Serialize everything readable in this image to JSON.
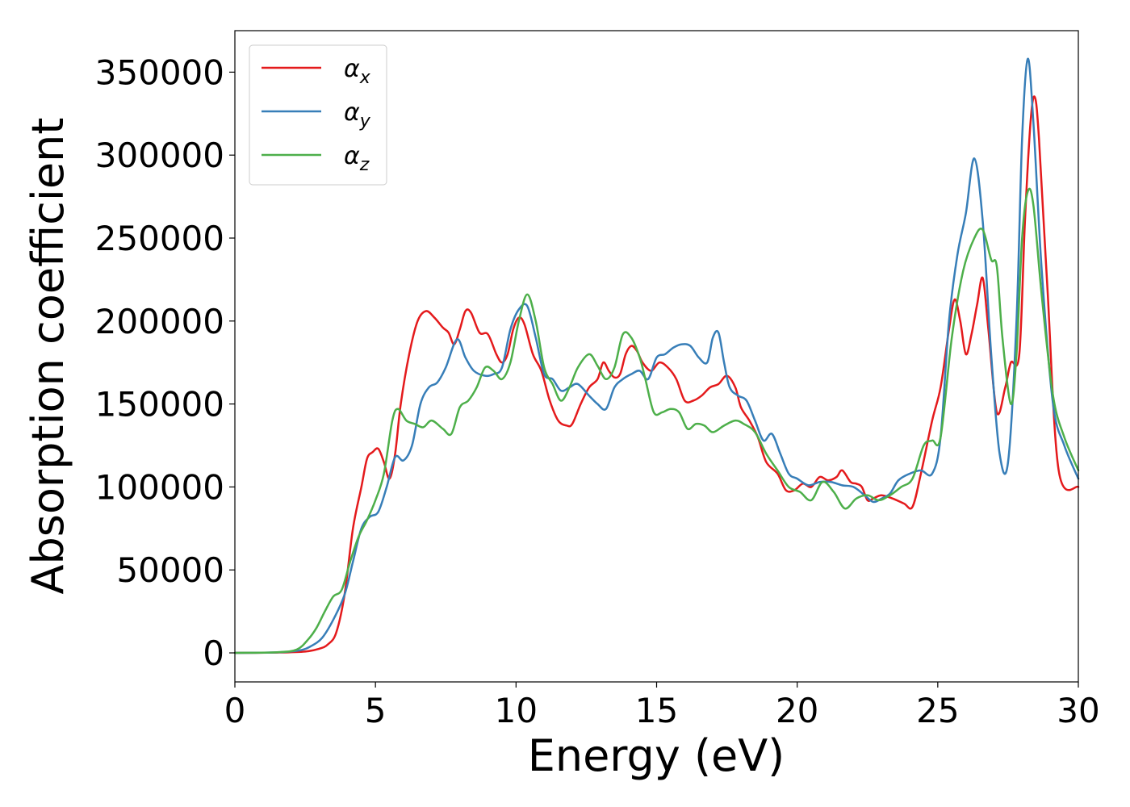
{
  "chart_data": {
    "type": "line",
    "title": "",
    "xlabel": "Energy (eV)",
    "ylabel": "Absorption coefficient",
    "xlim": [
      0,
      30
    ],
    "ylim": [
      -17500,
      375000
    ],
    "xticks": [
      0,
      5,
      10,
      15,
      20,
      25,
      30
    ],
    "yticks": [
      0,
      50000,
      100000,
      150000,
      200000,
      250000,
      300000,
      350000
    ],
    "xtick_labels": [
      "0",
      "5",
      "10",
      "15",
      "20",
      "25",
      "30"
    ],
    "ytick_labels": [
      "0",
      "50000",
      "100000",
      "150000",
      "200000",
      "250000",
      "300000",
      "350000"
    ],
    "grid": false,
    "legend_position": "top-left",
    "series": [
      {
        "name": "α",
        "subscript": "x",
        "color": "#e41a1c",
        "points": [
          [
            0,
            0
          ],
          [
            1.5,
            200
          ],
          [
            2.5,
            800
          ],
          [
            3.0,
            2500
          ],
          [
            3.3,
            5000
          ],
          [
            3.6,
            12000
          ],
          [
            3.9,
            35000
          ],
          [
            4.2,
            75000
          ],
          [
            4.5,
            100000
          ],
          [
            4.7,
            117000
          ],
          [
            4.9,
            121000
          ],
          [
            5.1,
            123000
          ],
          [
            5.3,
            115000
          ],
          [
            5.5,
            105000
          ],
          [
            5.7,
            120000
          ],
          [
            5.9,
            150000
          ],
          [
            6.2,
            180000
          ],
          [
            6.5,
            200000
          ],
          [
            6.8,
            206000
          ],
          [
            7.1,
            202000
          ],
          [
            7.4,
            196000
          ],
          [
            7.6,
            193000
          ],
          [
            7.8,
            186000
          ],
          [
            8.0,
            195000
          ],
          [
            8.2,
            206000
          ],
          [
            8.4,
            205000
          ],
          [
            8.7,
            193000
          ],
          [
            9.0,
            192000
          ],
          [
            9.3,
            180000
          ],
          [
            9.5,
            175000
          ],
          [
            9.7,
            180000
          ],
          [
            9.9,
            195000
          ],
          [
            10.1,
            202000
          ],
          [
            10.3,
            198000
          ],
          [
            10.6,
            180000
          ],
          [
            10.9,
            170000
          ],
          [
            11.2,
            152000
          ],
          [
            11.5,
            140000
          ],
          [
            11.8,
            137000
          ],
          [
            12.0,
            138000
          ],
          [
            12.3,
            150000
          ],
          [
            12.6,
            160000
          ],
          [
            12.9,
            165000
          ],
          [
            13.1,
            175000
          ],
          [
            13.3,
            170000
          ],
          [
            13.5,
            166000
          ],
          [
            13.7,
            168000
          ],
          [
            13.9,
            180000
          ],
          [
            14.1,
            185000
          ],
          [
            14.3,
            182000
          ],
          [
            14.5,
            175000
          ],
          [
            14.8,
            170000
          ],
          [
            15.1,
            175000
          ],
          [
            15.4,
            172000
          ],
          [
            15.7,
            165000
          ],
          [
            16.0,
            152000
          ],
          [
            16.3,
            152000
          ],
          [
            16.6,
            155000
          ],
          [
            16.9,
            160000
          ],
          [
            17.2,
            162000
          ],
          [
            17.5,
            167000
          ],
          [
            17.8,
            160000
          ],
          [
            18.0,
            148000
          ],
          [
            18.3,
            140000
          ],
          [
            18.6,
            130000
          ],
          [
            18.9,
            115000
          ],
          [
            19.3,
            108000
          ],
          [
            19.6,
            98000
          ],
          [
            19.9,
            98000
          ],
          [
            20.2,
            102000
          ],
          [
            20.5,
            100000
          ],
          [
            20.8,
            106000
          ],
          [
            21.1,
            104000
          ],
          [
            21.4,
            106000
          ],
          [
            21.6,
            110000
          ],
          [
            21.9,
            103000
          ],
          [
            22.1,
            102000
          ],
          [
            22.3,
            100000
          ],
          [
            22.5,
            92000
          ],
          [
            22.7,
            93000
          ],
          [
            23.0,
            95000
          ],
          [
            23.4,
            93000
          ],
          [
            23.8,
            90000
          ],
          [
            24.1,
            88000
          ],
          [
            24.4,
            108000
          ],
          [
            24.8,
            140000
          ],
          [
            25.1,
            160000
          ],
          [
            25.4,
            195000
          ],
          [
            25.6,
            213000
          ],
          [
            25.8,
            200000
          ],
          [
            26.0,
            180000
          ],
          [
            26.2,
            192000
          ],
          [
            26.4,
            210000
          ],
          [
            26.6,
            226000
          ],
          [
            26.8,
            195000
          ],
          [
            27.1,
            145000
          ],
          [
            27.4,
            160000
          ],
          [
            27.6,
            175000
          ],
          [
            27.9,
            180000
          ],
          [
            28.1,
            260000
          ],
          [
            28.3,
            320000
          ],
          [
            28.45,
            335000
          ],
          [
            28.6,
            310000
          ],
          [
            28.9,
            220000
          ],
          [
            29.3,
            110000
          ],
          [
            30.0,
            100000
          ]
        ]
      },
      {
        "name": "α",
        "subscript": "y",
        "color": "#377eb8",
        "points": [
          [
            0,
            0
          ],
          [
            1.5,
            300
          ],
          [
            2.3,
            1500
          ],
          [
            2.7,
            4000
          ],
          [
            3.1,
            9000
          ],
          [
            3.5,
            20000
          ],
          [
            3.9,
            35000
          ],
          [
            4.2,
            55000
          ],
          [
            4.5,
            75000
          ],
          [
            4.8,
            82000
          ],
          [
            5.1,
            85000
          ],
          [
            5.4,
            100000
          ],
          [
            5.7,
            118000
          ],
          [
            6.0,
            116000
          ],
          [
            6.3,
            125000
          ],
          [
            6.6,
            150000
          ],
          [
            6.9,
            160000
          ],
          [
            7.2,
            163000
          ],
          [
            7.5,
            172000
          ],
          [
            7.9,
            189000
          ],
          [
            8.2,
            178000
          ],
          [
            8.5,
            170000
          ],
          [
            8.9,
            167000
          ],
          [
            9.2,
            168000
          ],
          [
            9.5,
            172000
          ],
          [
            9.8,
            195000
          ],
          [
            10.1,
            207000
          ],
          [
            10.4,
            209000
          ],
          [
            10.7,
            190000
          ],
          [
            11.0,
            168000
          ],
          [
            11.3,
            165000
          ],
          [
            11.6,
            158000
          ],
          [
            11.9,
            160000
          ],
          [
            12.2,
            162000
          ],
          [
            12.6,
            155000
          ],
          [
            12.9,
            150000
          ],
          [
            13.2,
            147000
          ],
          [
            13.5,
            160000
          ],
          [
            13.8,
            165000
          ],
          [
            14.1,
            168000
          ],
          [
            14.4,
            170000
          ],
          [
            14.7,
            165000
          ],
          [
            15.0,
            178000
          ],
          [
            15.3,
            180000
          ],
          [
            15.6,
            184000
          ],
          [
            15.9,
            186000
          ],
          [
            16.2,
            185000
          ],
          [
            16.5,
            178000
          ],
          [
            16.8,
            175000
          ],
          [
            17.0,
            190000
          ],
          [
            17.2,
            193000
          ],
          [
            17.4,
            175000
          ],
          [
            17.6,
            160000
          ],
          [
            17.9,
            155000
          ],
          [
            18.2,
            152000
          ],
          [
            18.5,
            140000
          ],
          [
            18.8,
            128000
          ],
          [
            19.1,
            132000
          ],
          [
            19.4,
            120000
          ],
          [
            19.7,
            108000
          ],
          [
            20.0,
            105000
          ],
          [
            20.4,
            101000
          ],
          [
            20.8,
            103000
          ],
          [
            21.2,
            103000
          ],
          [
            21.6,
            101000
          ],
          [
            22.0,
            100000
          ],
          [
            22.4,
            95000
          ],
          [
            22.7,
            91000
          ],
          [
            23.0,
            93000
          ],
          [
            23.3,
            96000
          ],
          [
            23.6,
            104000
          ],
          [
            24.0,
            108000
          ],
          [
            24.4,
            110000
          ],
          [
            24.8,
            108000
          ],
          [
            25.1,
            130000
          ],
          [
            25.4,
            200000
          ],
          [
            25.7,
            240000
          ],
          [
            26.0,
            265000
          ],
          [
            26.3,
            298000
          ],
          [
            26.6,
            260000
          ],
          [
            26.9,
            180000
          ],
          [
            27.2,
            120000
          ],
          [
            27.5,
            115000
          ],
          [
            27.8,
            200000
          ],
          [
            28.0,
            310000
          ],
          [
            28.2,
            358000
          ],
          [
            28.4,
            320000
          ],
          [
            28.7,
            230000
          ],
          [
            29.1,
            150000
          ],
          [
            29.5,
            125000
          ],
          [
            30.0,
            105000
          ]
        ]
      },
      {
        "name": "α",
        "subscript": "z",
        "color": "#4daf4a",
        "points": [
          [
            0,
            0
          ],
          [
            1.5,
            400
          ],
          [
            2.2,
            2000
          ],
          [
            2.6,
            8000
          ],
          [
            2.9,
            15000
          ],
          [
            3.2,
            25000
          ],
          [
            3.5,
            34000
          ],
          [
            3.8,
            38000
          ],
          [
            4.1,
            55000
          ],
          [
            4.4,
            70000
          ],
          [
            4.7,
            80000
          ],
          [
            5.0,
            92000
          ],
          [
            5.3,
            108000
          ],
          [
            5.6,
            140000
          ],
          [
            5.8,
            147000
          ],
          [
            6.1,
            140000
          ],
          [
            6.4,
            138000
          ],
          [
            6.7,
            136000
          ],
          [
            7.0,
            140000
          ],
          [
            7.4,
            135000
          ],
          [
            7.7,
            132000
          ],
          [
            8.0,
            148000
          ],
          [
            8.3,
            152000
          ],
          [
            8.6,
            160000
          ],
          [
            8.9,
            172000
          ],
          [
            9.2,
            170000
          ],
          [
            9.5,
            165000
          ],
          [
            9.8,
            175000
          ],
          [
            10.1,
            200000
          ],
          [
            10.4,
            216000
          ],
          [
            10.7,
            200000
          ],
          [
            11.0,
            172000
          ],
          [
            11.3,
            162000
          ],
          [
            11.6,
            152000
          ],
          [
            11.9,
            160000
          ],
          [
            12.2,
            172000
          ],
          [
            12.6,
            180000
          ],
          [
            12.9,
            173000
          ],
          [
            13.2,
            165000
          ],
          [
            13.5,
            172000
          ],
          [
            13.8,
            192000
          ],
          [
            14.1,
            190000
          ],
          [
            14.4,
            178000
          ],
          [
            14.6,
            165000
          ],
          [
            14.9,
            145000
          ],
          [
            15.2,
            145000
          ],
          [
            15.5,
            147000
          ],
          [
            15.8,
            145000
          ],
          [
            16.1,
            135000
          ],
          [
            16.4,
            138000
          ],
          [
            16.7,
            137000
          ],
          [
            17.0,
            133000
          ],
          [
            17.4,
            137000
          ],
          [
            17.8,
            140000
          ],
          [
            18.1,
            138000
          ],
          [
            18.5,
            133000
          ],
          [
            18.9,
            120000
          ],
          [
            19.3,
            110000
          ],
          [
            19.7,
            100000
          ],
          [
            20.1,
            97000
          ],
          [
            20.5,
            92000
          ],
          [
            20.9,
            103000
          ],
          [
            21.3,
            97000
          ],
          [
            21.7,
            87000
          ],
          [
            22.1,
            93000
          ],
          [
            22.5,
            95000
          ],
          [
            22.9,
            92000
          ],
          [
            23.3,
            95000
          ],
          [
            23.7,
            100000
          ],
          [
            24.1,
            105000
          ],
          [
            24.5,
            125000
          ],
          [
            24.8,
            128000
          ],
          [
            25.1,
            130000
          ],
          [
            25.5,
            190000
          ],
          [
            25.9,
            230000
          ],
          [
            26.3,
            250000
          ],
          [
            26.6,
            255000
          ],
          [
            26.9,
            237000
          ],
          [
            27.1,
            233000
          ],
          [
            27.3,
            190000
          ],
          [
            27.6,
            150000
          ],
          [
            27.8,
            180000
          ],
          [
            28.0,
            250000
          ],
          [
            28.2,
            278000
          ],
          [
            28.4,
            270000
          ],
          [
            28.7,
            215000
          ],
          [
            29.1,
            155000
          ],
          [
            29.5,
            130000
          ],
          [
            30.0,
            110000
          ]
        ]
      }
    ]
  }
}
